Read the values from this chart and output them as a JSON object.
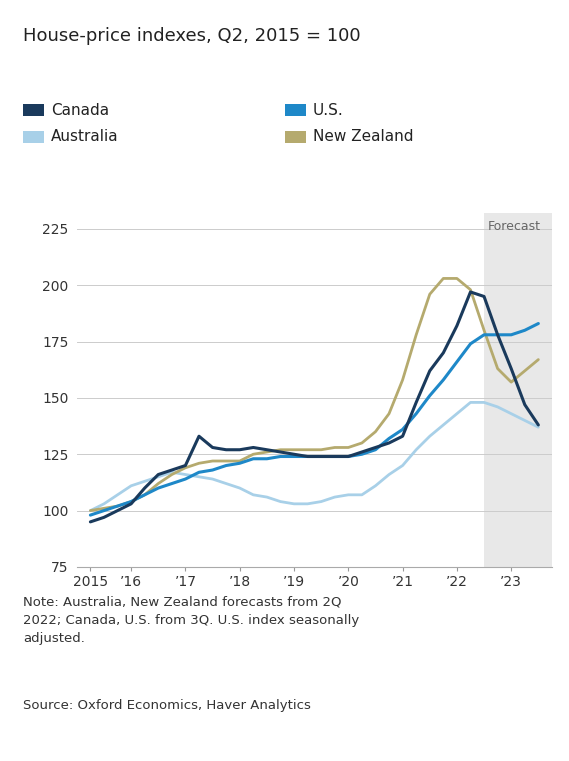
{
  "title": "House-price indexes, Q2, 2015 = 100",
  "forecast_label": "Forecast",
  "forecast_start": 2022.5,
  "xlim": [
    2015.0,
    2023.75
  ],
  "ylim": [
    75,
    232
  ],
  "yticks": [
    75,
    100,
    125,
    150,
    175,
    200,
    225
  ],
  "background_color": "#ffffff",
  "forecast_bg_color": "#e8e8e8",
  "note": "Note: Australia, New Zealand forecasts from 2Q\n2022; Canada, U.S. from 3Q. U.S. index seasonally\nadjusted.",
  "source": "Source: Oxford Economics, Haver Analytics",
  "series": {
    "Canada": {
      "color": "#1a3a5c",
      "linewidth": 2.2,
      "x": [
        2015.25,
        2015.5,
        2015.75,
        2016.0,
        2016.25,
        2016.5,
        2016.75,
        2017.0,
        2017.25,
        2017.5,
        2017.75,
        2018.0,
        2018.25,
        2018.5,
        2018.75,
        2019.0,
        2019.25,
        2019.5,
        2019.75,
        2020.0,
        2020.25,
        2020.5,
        2020.75,
        2021.0,
        2021.25,
        2021.5,
        2021.75,
        2022.0,
        2022.25,
        2022.5,
        2022.75,
        2023.0,
        2023.25,
        2023.5
      ],
      "y": [
        95,
        97,
        100,
        103,
        110,
        116,
        118,
        120,
        133,
        128,
        127,
        127,
        128,
        127,
        126,
        125,
        124,
        124,
        124,
        124,
        126,
        128,
        130,
        133,
        148,
        162,
        170,
        182,
        197,
        195,
        178,
        163,
        147,
        138
      ]
    },
    "U.S.": {
      "color": "#1e88c8",
      "linewidth": 2.2,
      "x": [
        2015.25,
        2015.5,
        2015.75,
        2016.0,
        2016.25,
        2016.5,
        2016.75,
        2017.0,
        2017.25,
        2017.5,
        2017.75,
        2018.0,
        2018.25,
        2018.5,
        2018.75,
        2019.0,
        2019.25,
        2019.5,
        2019.75,
        2020.0,
        2020.25,
        2020.5,
        2020.75,
        2021.0,
        2021.25,
        2021.5,
        2021.75,
        2022.0,
        2022.25,
        2022.5,
        2022.75,
        2023.0,
        2023.25,
        2023.5
      ],
      "y": [
        98,
        100,
        102,
        104,
        107,
        110,
        112,
        114,
        117,
        118,
        120,
        121,
        123,
        123,
        124,
        124,
        124,
        124,
        124,
        124,
        125,
        127,
        132,
        136,
        143,
        151,
        158,
        166,
        174,
        178,
        178,
        178,
        180,
        183
      ]
    },
    "Australia": {
      "color": "#a8d0e8",
      "linewidth": 2.0,
      "x": [
        2015.25,
        2015.5,
        2015.75,
        2016.0,
        2016.25,
        2016.5,
        2016.75,
        2017.0,
        2017.25,
        2017.5,
        2017.75,
        2018.0,
        2018.25,
        2018.5,
        2018.75,
        2019.0,
        2019.25,
        2019.5,
        2019.75,
        2020.0,
        2020.25,
        2020.5,
        2020.75,
        2021.0,
        2021.25,
        2021.5,
        2021.75,
        2022.0,
        2022.25,
        2022.5,
        2022.75,
        2023.0,
        2023.25,
        2023.5
      ],
      "y": [
        100,
        103,
        107,
        111,
        113,
        115,
        117,
        116,
        115,
        114,
        112,
        110,
        107,
        106,
        104,
        103,
        103,
        104,
        106,
        107,
        107,
        111,
        116,
        120,
        127,
        133,
        138,
        143,
        148,
        148,
        146,
        143,
        140,
        137
      ]
    },
    "New Zealand": {
      "color": "#b5aa6e",
      "linewidth": 2.0,
      "x": [
        2015.25,
        2015.5,
        2015.75,
        2016.0,
        2016.25,
        2016.5,
        2016.75,
        2017.0,
        2017.25,
        2017.5,
        2017.75,
        2018.0,
        2018.25,
        2018.5,
        2018.75,
        2019.0,
        2019.25,
        2019.5,
        2019.75,
        2020.0,
        2020.25,
        2020.5,
        2020.75,
        2021.0,
        2021.25,
        2021.5,
        2021.75,
        2022.0,
        2022.25,
        2022.5,
        2022.75,
        2023.0,
        2023.25,
        2023.5
      ],
      "y": [
        100,
        101,
        102,
        104,
        107,
        112,
        116,
        119,
        121,
        122,
        122,
        122,
        125,
        126,
        127,
        127,
        127,
        127,
        128,
        128,
        130,
        135,
        143,
        158,
        178,
        196,
        203,
        203,
        198,
        180,
        163,
        157,
        162,
        167
      ]
    }
  },
  "legend": [
    {
      "label": "Canada",
      "color": "#1a3a5c"
    },
    {
      "label": "U.S.",
      "color": "#1e88c8"
    },
    {
      "label": "Australia",
      "color": "#a8d0e8"
    },
    {
      "label": "New Zealand",
      "color": "#b5aa6e"
    }
  ],
  "xtick_positions": [
    2015.25,
    2016.0,
    2017.0,
    2018.0,
    2019.0,
    2020.0,
    2021.0,
    2022.0,
    2023.0
  ],
  "xtick_labels": [
    "2015",
    "’16",
    "’17",
    "’18",
    "’19",
    "’20",
    "’21",
    "’22",
    "’23"
  ]
}
